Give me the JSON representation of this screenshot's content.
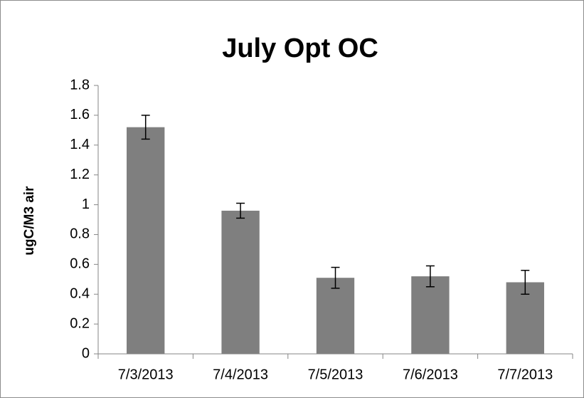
{
  "chart_data": {
    "type": "bar",
    "title": "July Opt OC",
    "y_label": "ugC/M3 air",
    "categories": [
      "7/3/2013",
      "7/4/2013",
      "7/5/2013",
      "7/6/2013",
      "7/7/2013"
    ],
    "values": [
      1.52,
      0.96,
      0.51,
      0.52,
      0.48
    ],
    "errors": [
      0.08,
      0.05,
      0.07,
      0.07,
      0.08
    ],
    "color": "#7f7f7f",
    "ylim": [
      0,
      1.8
    ],
    "yticks": [
      0,
      0.2,
      0.4,
      0.6,
      0.8,
      1,
      1.2,
      1.4,
      1.6,
      1.8
    ],
    "grid": false
  }
}
